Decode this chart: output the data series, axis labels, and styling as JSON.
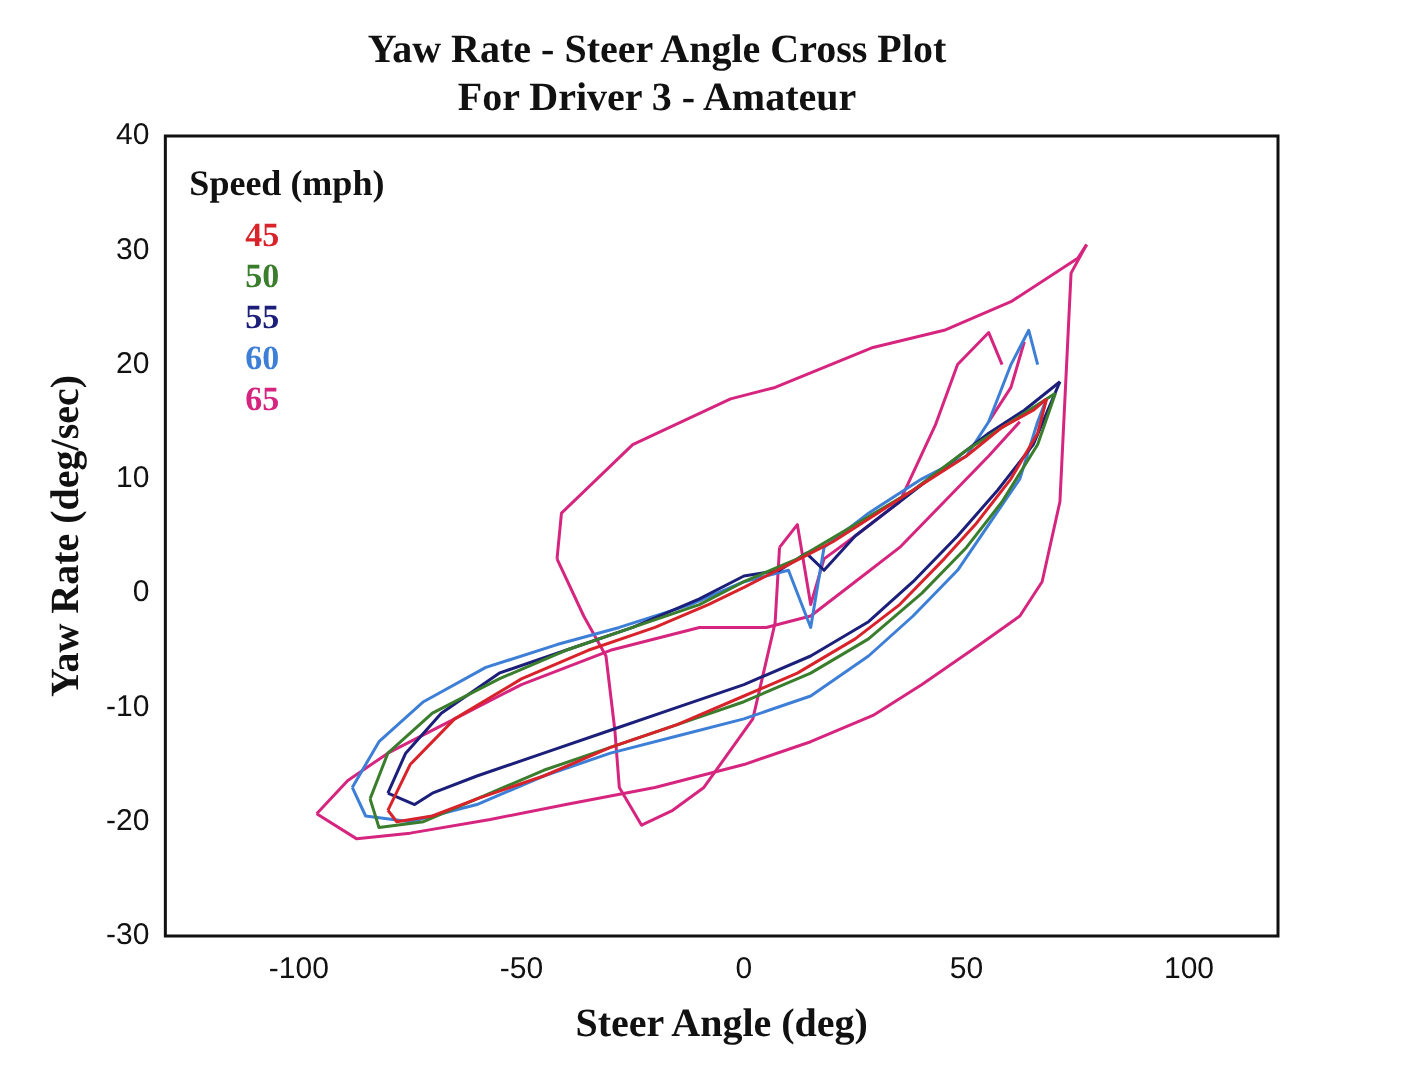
{
  "chart_data": {
    "type": "line",
    "title": "Yaw Rate - Steer Angle Cross Plot",
    "subtitle": "For Driver 3 - Amateur",
    "xlabel": "Steer Angle (deg)",
    "ylabel": "Yaw Rate (deg/sec)",
    "legend_title": "Speed (mph)",
    "marker": "none",
    "line_style": "solid",
    "grid": false,
    "xlim": [
      -130,
      120
    ],
    "xticks": [
      -100,
      -50,
      0,
      50,
      100
    ],
    "ylim": [
      -30,
      40
    ],
    "yticks": [
      -30,
      -20,
      -10,
      0,
      10,
      20,
      30,
      40
    ],
    "series": [
      {
        "name": "45",
        "color": "#d8232a",
        "x": [
          -80,
          -75,
          -65,
          -50,
          -35,
          -20,
          -8,
          0,
          10,
          20,
          30,
          40,
          50,
          58,
          65,
          68
        ],
        "values": [
          -19,
          -15,
          -11,
          -7.5,
          -5,
          -3,
          -1,
          0.5,
          2.5,
          4.5,
          7,
          9.5,
          12,
          14.5,
          16,
          17
        ]
      },
      {
        "color": "#d8232a",
        "x": [
          -80,
          -78,
          -70,
          -60,
          -45,
          -30,
          -15,
          0,
          12,
          25,
          35,
          45,
          52,
          60,
          66,
          68
        ],
        "values": [
          -19,
          -20,
          -19.5,
          -18,
          -16,
          -13.5,
          -11.5,
          -9,
          -7,
          -4,
          -1,
          3,
          6,
          10,
          14,
          17
        ]
      },
      {
        "name": "50",
        "color": "#3a7d2c",
        "x": [
          -84,
          -80,
          -70,
          -55,
          -40,
          -25,
          -10,
          0,
          12,
          25,
          38,
          50,
          60,
          70
        ],
        "values": [
          -18,
          -14,
          -10.5,
          -7.5,
          -5,
          -3,
          -1,
          1,
          3,
          6,
          9,
          12.5,
          15,
          17.5
        ]
      },
      {
        "color": "#3a7d2c",
        "x": [
          -84,
          -82,
          -72,
          -60,
          -45,
          -30,
          -15,
          0,
          15,
          28,
          40,
          50,
          58,
          66,
          70
        ],
        "values": [
          -18,
          -20.5,
          -20,
          -18,
          -15.5,
          -13.5,
          -11.5,
          -9.5,
          -7,
          -4,
          0,
          4,
          8,
          13,
          17.5
        ]
      },
      {
        "name": "55",
        "color": "#1c1f7a",
        "x": [
          -80,
          -76,
          -68,
          -55,
          -40,
          -25,
          -10,
          0,
          8,
          14,
          18,
          25,
          35,
          45,
          55,
          63,
          71
        ],
        "values": [
          -17.5,
          -14,
          -10.5,
          -7,
          -5,
          -3,
          -0.5,
          1.5,
          2,
          3.5,
          2,
          5,
          8,
          11,
          14,
          16,
          18.5
        ]
      },
      {
        "color": "#1c1f7a",
        "x": [
          -80,
          -74,
          -70,
          -60,
          -45,
          -30,
          -15,
          0,
          15,
          28,
          38,
          48,
          57,
          65,
          71
        ],
        "values": [
          -17.5,
          -18.5,
          -17.5,
          -16,
          -14,
          -12,
          -10,
          -8,
          -5.5,
          -2.5,
          1,
          5,
          9,
          13,
          18.5
        ]
      },
      {
        "name": "60",
        "color": "#3d7fd6",
        "x": [
          -88,
          -82,
          -72,
          -58,
          -42,
          -28,
          -12,
          0,
          10,
          15,
          18,
          28,
          40,
          50,
          55,
          60,
          64,
          66
        ],
        "values": [
          -17,
          -13,
          -9.5,
          -6.5,
          -4.5,
          -3,
          -1,
          1,
          2,
          -3,
          4,
          7,
          10,
          12,
          15,
          20,
          23,
          20
        ]
      },
      {
        "color": "#3d7fd6",
        "x": [
          -88,
          -85,
          -75,
          -60,
          -45,
          -30,
          -15,
          0,
          15,
          28,
          38,
          48,
          55,
          62,
          66,
          68
        ],
        "values": [
          -17,
          -19.5,
          -20,
          -18.5,
          -16,
          -14,
          -12.5,
          -11,
          -9,
          -5.5,
          -2,
          2,
          6,
          10,
          15,
          17
        ]
      },
      {
        "name": "65",
        "color": "#d6257f",
        "x": [
          -96,
          -87,
          -75,
          -57,
          -40,
          -20,
          0,
          15,
          29,
          40,
          53,
          62,
          67,
          71,
          72,
          73,
          73.5,
          77
        ],
        "values": [
          -19.3,
          -21.5,
          -21,
          -19.8,
          -18.5,
          -17,
          -15,
          -13,
          -10.7,
          -8,
          -4.5,
          -2,
          1,
          8,
          16,
          24,
          28,
          30.5
        ]
      },
      {
        "color": "#d6257f",
        "x": [
          -42,
          -41,
          -25,
          -3,
          7,
          29,
          45,
          60,
          75,
          77
        ],
        "values": [
          3,
          7,
          13,
          17,
          18,
          21.5,
          23,
          25.5,
          29.3,
          30.5
        ]
      },
      {
        "color": "#d6257f",
        "x": [
          -42,
          -36,
          -31,
          -29,
          -28,
          -23,
          -16,
          -9,
          2,
          7,
          8
        ],
        "values": [
          3,
          -2,
          -5.5,
          -12,
          -17,
          -20.3,
          -19,
          -17,
          -11,
          -2.6,
          4
        ]
      },
      {
        "color": "#d6257f",
        "x": [
          -96,
          -89,
          -80,
          -65,
          -50,
          -30,
          -10,
          5,
          15,
          25,
          35,
          45,
          55,
          62
        ],
        "values": [
          -19.3,
          -16.4,
          -14,
          -11,
          -8,
          -5,
          -3,
          -3,
          -2,
          1,
          4,
          8,
          12,
          15
        ]
      },
      {
        "color": "#d6257f",
        "x": [
          8,
          12,
          15,
          18,
          25,
          35,
          43,
          48,
          55,
          58
        ],
        "values": [
          4,
          6,
          -1,
          3,
          5,
          8,
          14.7,
          20,
          22.8,
          20
        ]
      },
      {
        "color": "#d6257f",
        "x": [
          55,
          60,
          63
        ],
        "values": [
          15,
          18,
          22
        ]
      }
    ]
  }
}
